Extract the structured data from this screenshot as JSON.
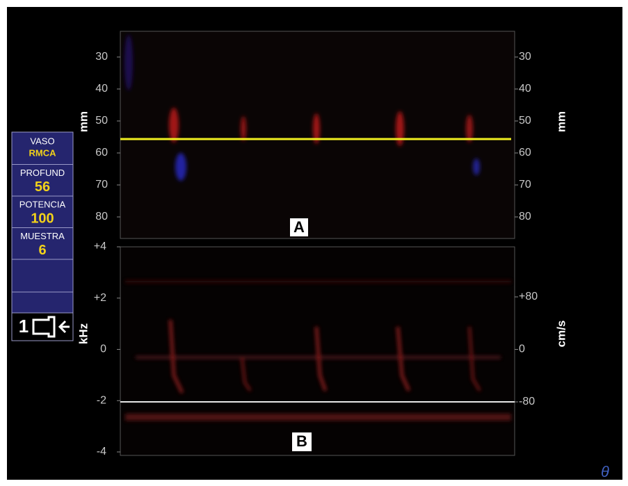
{
  "side_panel": {
    "rows": [
      {
        "label": "VASO",
        "value": "RMCA"
      },
      {
        "label": "PROFUND",
        "value": "56"
      },
      {
        "label": "POTENCIA",
        "value": "100"
      },
      {
        "label": "MUESTRA",
        "value": "6"
      }
    ],
    "probe": "1"
  },
  "panel_a": {
    "marker": "A",
    "left_axis_title": "mm",
    "right_axis_title": "mm",
    "left_ticks": [
      "30",
      "40",
      "50",
      "60",
      "70",
      "80"
    ],
    "right_ticks": [
      "30",
      "40",
      "50",
      "60",
      "70",
      "80"
    ]
  },
  "panel_b": {
    "marker": "B",
    "left_axis_title": "kHz",
    "right_axis_title": "cm/s",
    "left_ticks": [
      "+4",
      "+2",
      "0",
      "-2",
      "-4"
    ],
    "right_ticks": [
      "+80",
      "0",
      "-80"
    ]
  }
}
